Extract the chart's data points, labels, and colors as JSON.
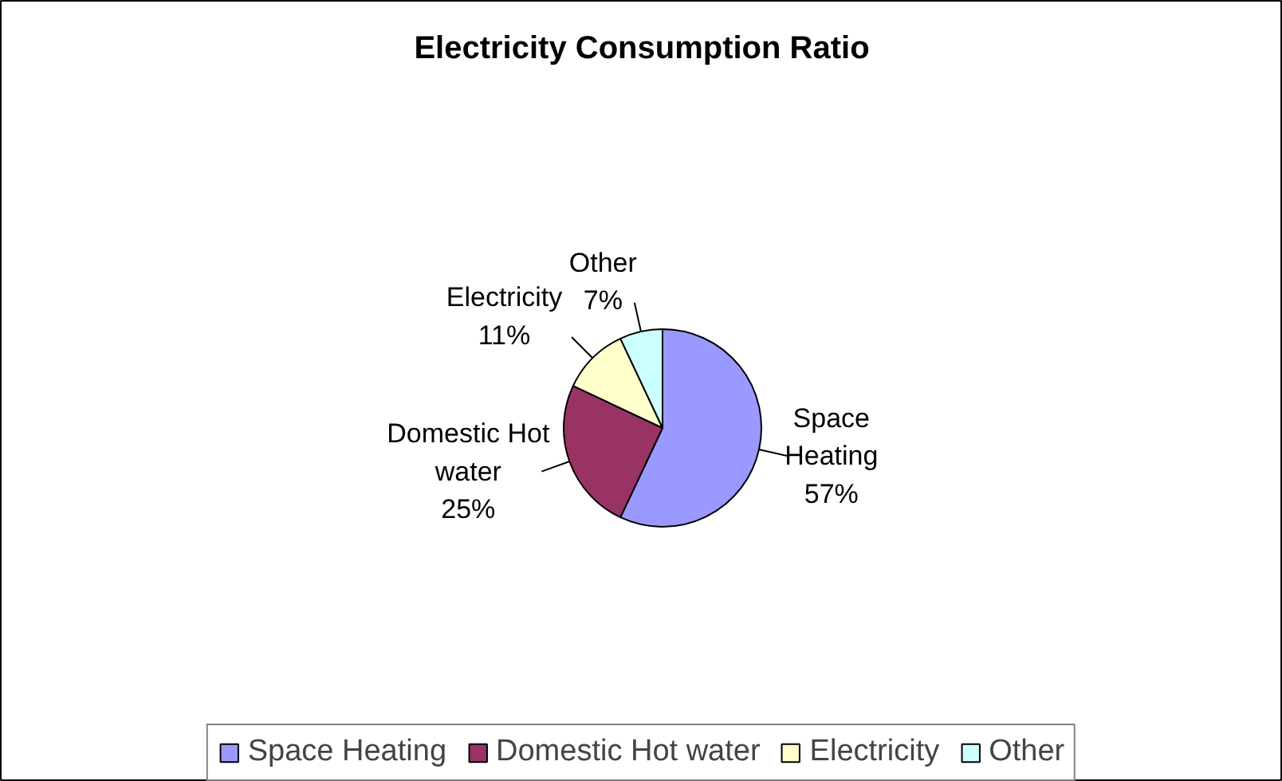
{
  "chart_data": {
    "type": "pie",
    "title": "Electricity Consumption Ratio",
    "categories": [
      "Space Heating",
      "Domestic Hot water",
      "Electricity",
      "Other"
    ],
    "values": [
      57,
      25,
      11,
      7
    ],
    "colors": [
      "#9999ff",
      "#993366",
      "#ffffcc",
      "#ccffff"
    ],
    "value_labels": [
      "57%",
      "25%",
      "11%",
      "7%"
    ],
    "legend": "bottom"
  }
}
